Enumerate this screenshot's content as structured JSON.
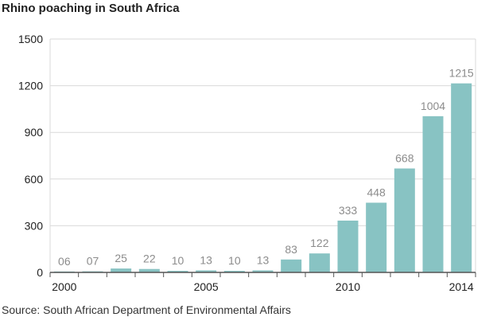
{
  "title": "Rhino poaching in South Africa",
  "source": "Source: South African Department of Environmental Affairs",
  "colors": {
    "bar": "#88c3c3",
    "grid": "#d9d9d9",
    "axis": "#555555",
    "label": "#8c8c8c"
  },
  "chart_data": {
    "type": "bar",
    "title": "Rhino poaching in South Africa",
    "xlabel": "",
    "ylabel": "",
    "ylim": [
      0,
      1500
    ],
    "yticks": [
      "0",
      "300",
      "600",
      "900",
      "1200",
      "1500"
    ],
    "xticks": [
      "2000",
      "2005",
      "2010",
      "2014"
    ],
    "grid": true,
    "categories": [
      "2000",
      "2001",
      "2002",
      "2003",
      "2004",
      "2005",
      "2006",
      "2007",
      "2008",
      "2009",
      "2010",
      "2011",
      "2012",
      "2013",
      "2014"
    ],
    "values": [
      6,
      7,
      25,
      22,
      10,
      13,
      10,
      13,
      83,
      122,
      333,
      448,
      668,
      1004,
      1215
    ],
    "data_labels": [
      "06",
      "07",
      "25",
      "22",
      "10",
      "13",
      "10",
      "13",
      "83",
      "122",
      "333",
      "448",
      "668",
      "1004",
      "1215"
    ]
  }
}
